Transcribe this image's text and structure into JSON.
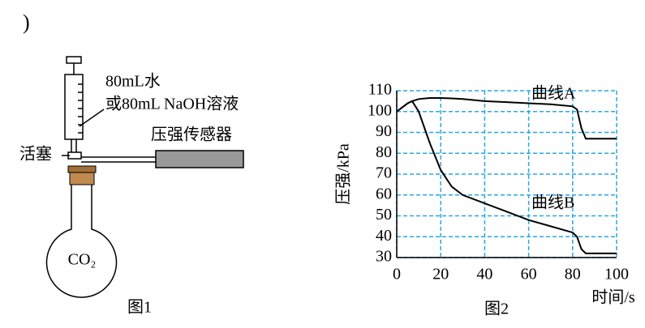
{
  "fragment": ")",
  "figure1": {
    "labels": {
      "liquid1": "80mL水",
      "liquid2": "或80mL NaOH溶液",
      "sensor": "压强传感器",
      "valve": "活塞",
      "gas": "CO₂"
    },
    "caption": "图1"
  },
  "chart_data": {
    "type": "line",
    "caption": "图2",
    "x_label": "时间/s",
    "y_label": "压强/kPa",
    "x": [
      0,
      5,
      7,
      10,
      15,
      20,
      25,
      30,
      40,
      50,
      60,
      70,
      80,
      82,
      84,
      86,
      90,
      100
    ],
    "series": [
      {
        "name": "曲线A",
        "color": "#000000",
        "values": [
          100,
          104,
          105,
          106,
          106.5,
          106.5,
          106.3,
          106,
          105,
          104.5,
          104,
          103.5,
          102.5,
          101,
          92,
          87,
          87,
          87
        ]
      },
      {
        "name": "曲线B",
        "color": "#000000",
        "values": [
          100,
          104,
          105,
          100,
          85,
          72,
          64,
          60,
          56,
          52,
          48,
          45,
          42,
          40,
          34,
          32,
          32,
          32
        ]
      }
    ],
    "xlim": [
      0,
      100
    ],
    "xticks": [
      0,
      20,
      40,
      60,
      80,
      100
    ],
    "ylim": [
      30,
      110
    ],
    "yticks": [
      30,
      40,
      50,
      60,
      70,
      80,
      90,
      100,
      110
    ],
    "grid": true,
    "grid_color": "#29a8e0"
  }
}
